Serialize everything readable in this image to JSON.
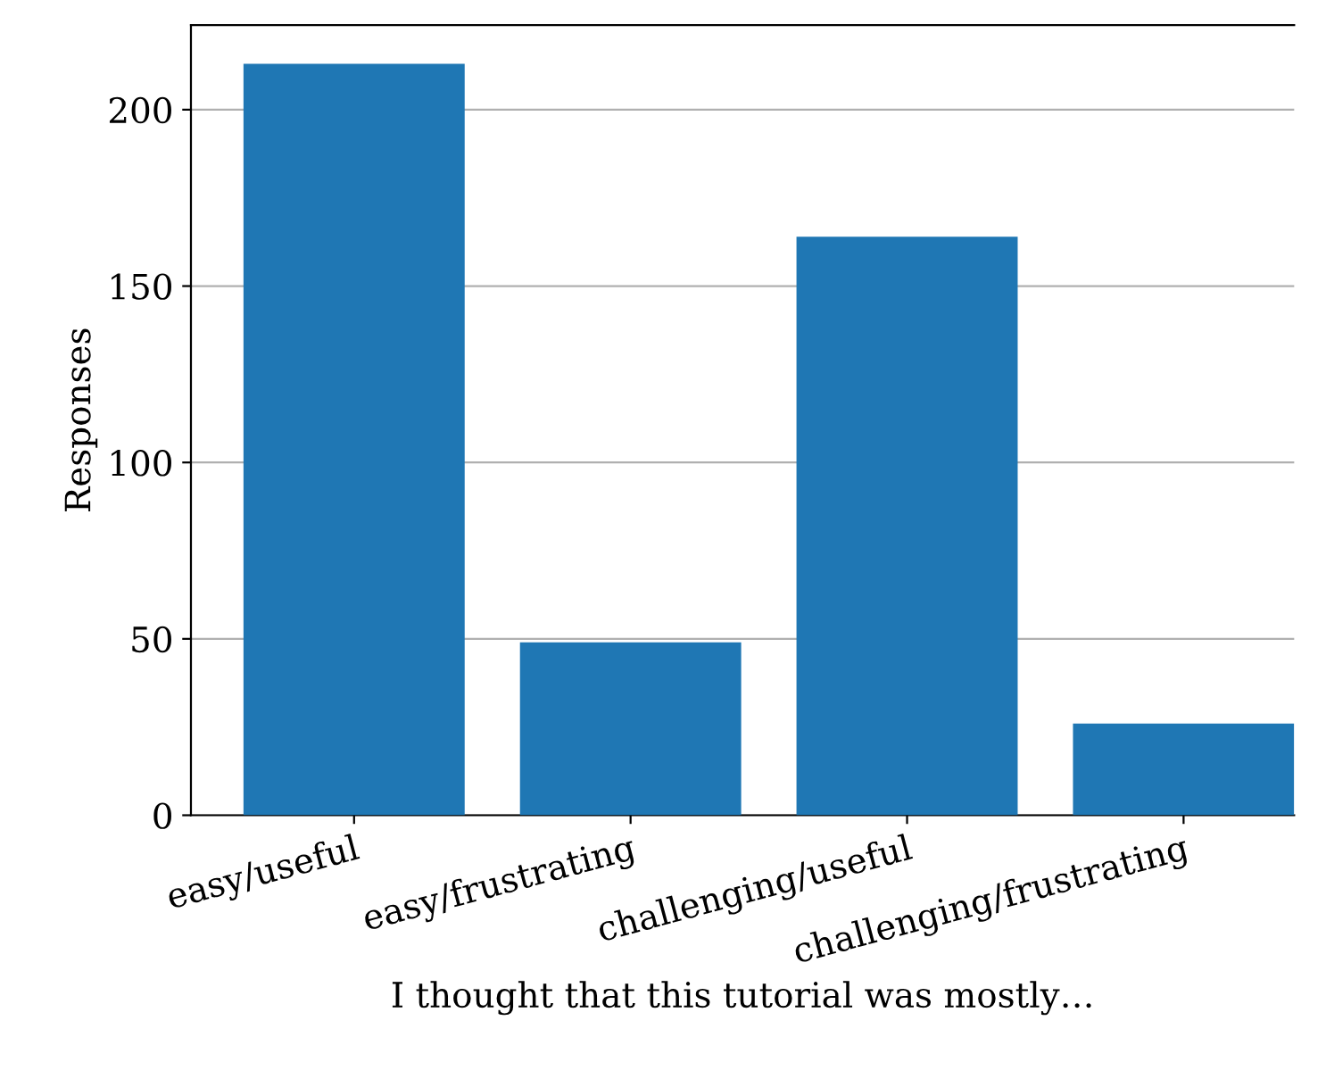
{
  "chart_data": {
    "type": "bar",
    "xlabel": "I thought that this tutorial was mostly…",
    "ylabel": "Responses",
    "categories": [
      "easy/useful",
      "easy/frustrating",
      "challenging/useful",
      "challenging/frustrating"
    ],
    "values": [
      213,
      49,
      164,
      26
    ],
    "color": "#1f77b4",
    "ylim": [
      0,
      224
    ],
    "yticks": [
      0,
      50,
      100,
      150,
      200
    ],
    "grid": "y",
    "legend": false
  }
}
